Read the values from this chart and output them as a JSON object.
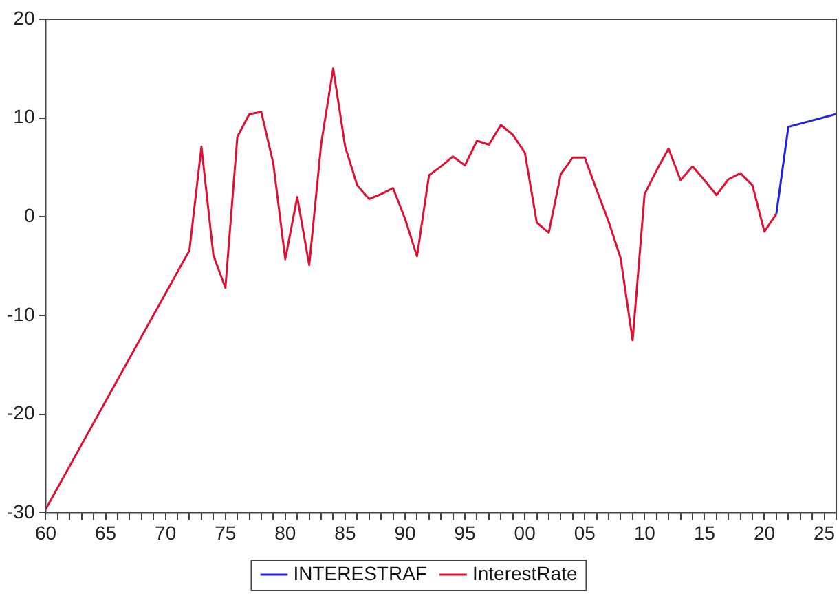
{
  "chart_data": {
    "type": "line",
    "legend": "bottom",
    "grid": false,
    "marker": "none",
    "line_style": "solid",
    "xlim": [
      1960,
      2026
    ],
    "ylim": [
      -30,
      20
    ],
    "yticks": [
      -30,
      -20,
      -10,
      0,
      10,
      20
    ],
    "xticks": [
      {
        "value": 1960,
        "label": "60"
      },
      {
        "value": 1961,
        "label": null
      },
      {
        "value": 1962,
        "label": null
      },
      {
        "value": 1963,
        "label": null
      },
      {
        "value": 1964,
        "label": null
      },
      {
        "value": 1965,
        "label": "65"
      },
      {
        "value": 1966,
        "label": null
      },
      {
        "value": 1967,
        "label": null
      },
      {
        "value": 1968,
        "label": null
      },
      {
        "value": 1969,
        "label": null
      },
      {
        "value": 1970,
        "label": "70"
      },
      {
        "value": 1971,
        "label": null
      },
      {
        "value": 1972,
        "label": null
      },
      {
        "value": 1973,
        "label": null
      },
      {
        "value": 1974,
        "label": null
      },
      {
        "value": 1975,
        "label": "75"
      },
      {
        "value": 1976,
        "label": null
      },
      {
        "value": 1977,
        "label": null
      },
      {
        "value": 1978,
        "label": null
      },
      {
        "value": 1979,
        "label": null
      },
      {
        "value": 1980,
        "label": "80"
      },
      {
        "value": 1981,
        "label": null
      },
      {
        "value": 1982,
        "label": null
      },
      {
        "value": 1983,
        "label": null
      },
      {
        "value": 1984,
        "label": null
      },
      {
        "value": 1985,
        "label": "85"
      },
      {
        "value": 1986,
        "label": null
      },
      {
        "value": 1987,
        "label": null
      },
      {
        "value": 1988,
        "label": null
      },
      {
        "value": 1989,
        "label": null
      },
      {
        "value": 1990,
        "label": "90"
      },
      {
        "value": 1991,
        "label": null
      },
      {
        "value": 1992,
        "label": null
      },
      {
        "value": 1993,
        "label": null
      },
      {
        "value": 1994,
        "label": null
      },
      {
        "value": 1995,
        "label": "95"
      },
      {
        "value": 1996,
        "label": null
      },
      {
        "value": 1997,
        "label": null
      },
      {
        "value": 1998,
        "label": null
      },
      {
        "value": 1999,
        "label": null
      },
      {
        "value": 2000,
        "label": "00"
      },
      {
        "value": 2001,
        "label": null
      },
      {
        "value": 2002,
        "label": null
      },
      {
        "value": 2003,
        "label": null
      },
      {
        "value": 2004,
        "label": null
      },
      {
        "value": 2005,
        "label": "05"
      },
      {
        "value": 2006,
        "label": null
      },
      {
        "value": 2007,
        "label": null
      },
      {
        "value": 2008,
        "label": null
      },
      {
        "value": 2009,
        "label": null
      },
      {
        "value": 2010,
        "label": "10"
      },
      {
        "value": 2011,
        "label": null
      },
      {
        "value": 2012,
        "label": null
      },
      {
        "value": 2013,
        "label": null
      },
      {
        "value": 2014,
        "label": null
      },
      {
        "value": 2015,
        "label": "15"
      },
      {
        "value": 2016,
        "label": null
      },
      {
        "value": 2017,
        "label": null
      },
      {
        "value": 2018,
        "label": null
      },
      {
        "value": 2019,
        "label": null
      },
      {
        "value": 2020,
        "label": "20"
      },
      {
        "value": 2021,
        "label": null
      },
      {
        "value": 2022,
        "label": null
      },
      {
        "value": 2023,
        "label": null
      },
      {
        "value": 2024,
        "label": null
      },
      {
        "value": 2025,
        "label": "25"
      },
      {
        "value": 2026,
        "label": null
      }
    ],
    "series": [
      {
        "name": "INTERESTRAF",
        "color": "#2222dd",
        "x": [
          2021,
          2022,
          2026
        ],
        "values": [
          0.3,
          9.1,
          10.4
        ]
      },
      {
        "name": "InterestRate",
        "color": "#dd1133",
        "x": [
          1960,
          1972,
          1973,
          1974,
          1975,
          1976,
          1977,
          1978,
          1979,
          1980,
          1981,
          1982,
          1983,
          1984,
          1985,
          1986,
          1987,
          1988,
          1989,
          1990,
          1991,
          1992,
          1993,
          1994,
          1995,
          1996,
          1997,
          1998,
          1999,
          2000,
          2001,
          2002,
          2003,
          2004,
          2005,
          2006,
          2007,
          2008,
          2009,
          2010,
          2011,
          2012,
          2013,
          2014,
          2015,
          2016,
          2017,
          2018,
          2019,
          2020,
          2021
        ],
        "values": [
          -29.6,
          -3.4,
          7.1,
          -3.9,
          -7.2,
          8.1,
          10.4,
          10.6,
          5.4,
          -4.3,
          2.0,
          -4.9,
          7.4,
          15.0,
          7.1,
          3.2,
          1.8,
          2.3,
          2.9,
          -0.2,
          -4.0,
          4.2,
          5.1,
          6.1,
          5.2,
          7.7,
          7.3,
          9.3,
          8.3,
          6.5,
          -0.6,
          -1.6,
          4.3,
          6.0,
          6.0,
          2.7,
          -0.5,
          -4.2,
          -12.5,
          2.3,
          4.7,
          6.9,
          3.7,
          5.1,
          3.7,
          2.2,
          3.8,
          4.4,
          3.2,
          -1.5,
          0.3
        ]
      }
    ]
  }
}
